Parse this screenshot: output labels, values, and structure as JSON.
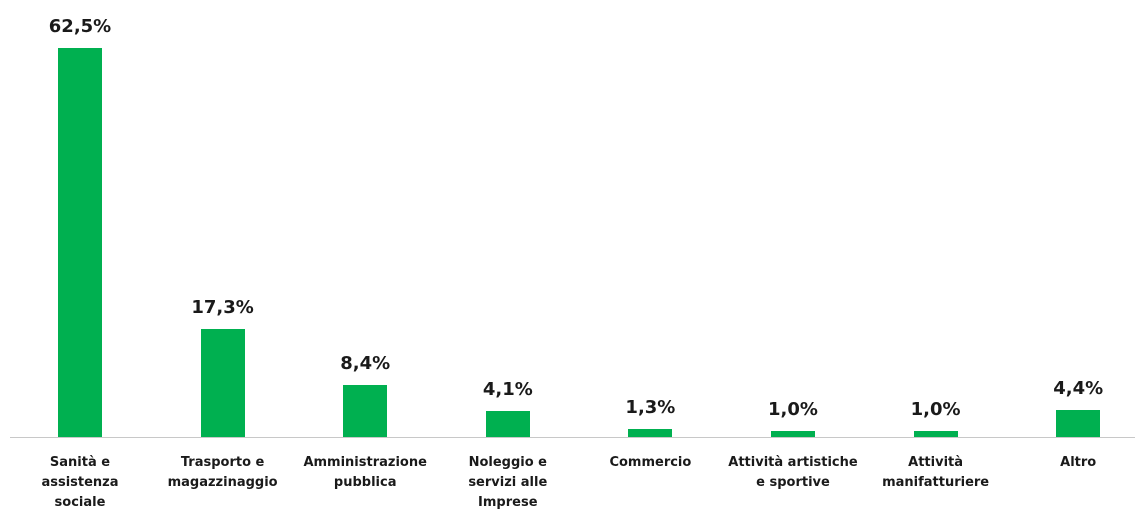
{
  "chart_data": {
    "type": "bar",
    "categories": [
      "Sanità e assistenza sociale",
      "Trasporto e magazzinaggio",
      "Amministrazione pubblica",
      "Noleggio e servizi alle Imprese",
      "Commercio",
      "Attività artistiche e sportive",
      "Attività manifatturiere",
      "Altro"
    ],
    "values": [
      62.5,
      17.3,
      8.4,
      4.1,
      1.3,
      1.0,
      1.0,
      4.4
    ],
    "value_labels": [
      "62,5%",
      "17,3%",
      "8,4%",
      "4,1%",
      "1,3%",
      "1,0%",
      "1,0%",
      "4,4%"
    ],
    "color": "#00b050"
  }
}
